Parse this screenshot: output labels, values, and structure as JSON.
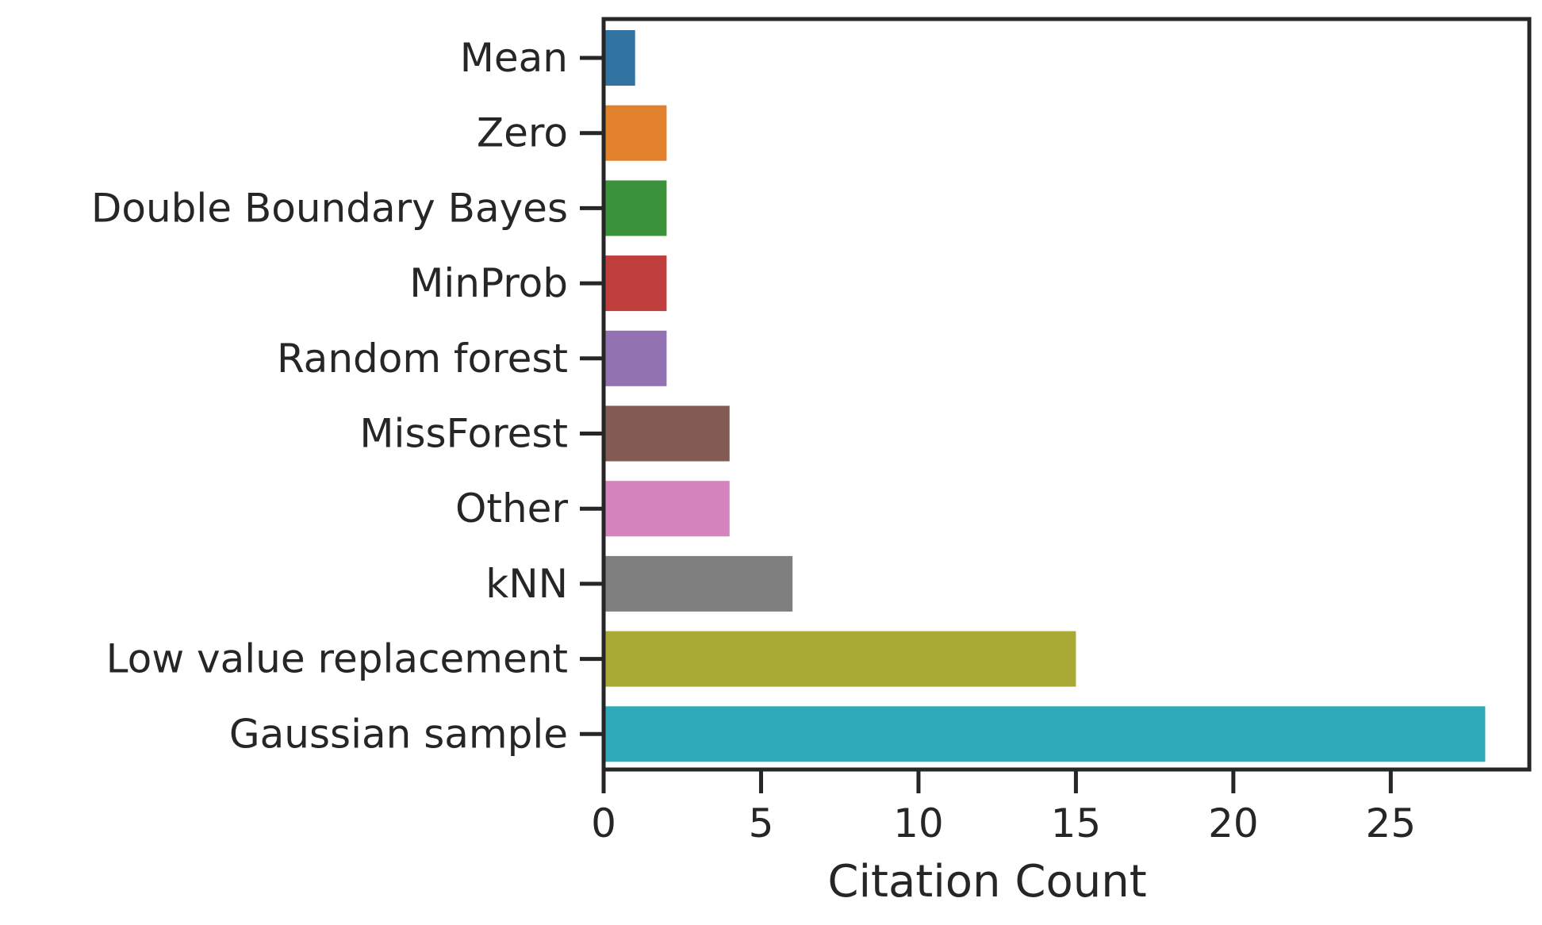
{
  "chart_data": {
    "type": "bar",
    "orientation": "horizontal",
    "title": "",
    "xlabel": "Citation Count",
    "ylabel": "",
    "xlim": [
      0,
      29.4
    ],
    "x_ticks": [
      0,
      5,
      10,
      15,
      20,
      25
    ],
    "grid": false,
    "legend": "none",
    "categories": [
      "Mean",
      "Zero",
      "Double Boundary Bayes",
      "MinProb",
      "Random forest",
      "MissForest",
      "Other",
      "kNN",
      "Low value replacement",
      "Gaussian sample"
    ],
    "values": [
      1,
      2,
      2,
      2,
      2,
      4,
      4,
      6,
      15,
      28
    ],
    "colors": [
      "#3274a1",
      "#e1812c",
      "#3a923a",
      "#c03d3e",
      "#9372b2",
      "#845b53",
      "#d684bd",
      "#7f7f7f",
      "#a9aa35",
      "#2eaab8"
    ]
  }
}
